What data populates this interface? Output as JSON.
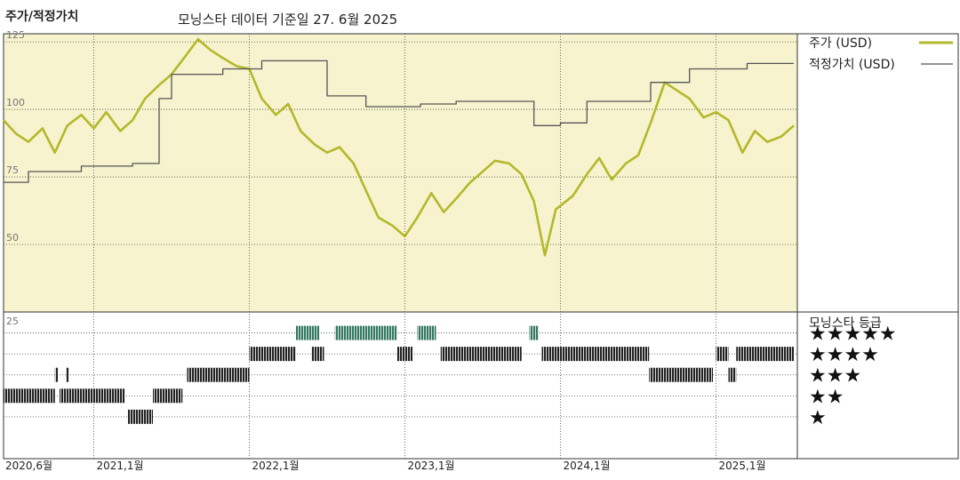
{
  "title": "주가/적정가치",
  "subtitle": "모닝스타 데이터 기준일 27. 6월 2025",
  "chart_data": {
    "type": "line",
    "x_range": [
      "2020-06",
      "2025-07"
    ],
    "x_ticks": [
      {
        "label": "2020,6월",
        "t": 2020.42
      },
      {
        "label": "2021,1월",
        "t": 2021.0
      },
      {
        "label": "2022,1월",
        "t": 2022.0
      },
      {
        "label": "2023,1월",
        "t": 2023.0
      },
      {
        "label": "2024,1월",
        "t": 2024.0
      },
      {
        "label": "2025,1월",
        "t": 2025.0
      }
    ],
    "y_ticks": [
      125,
      100,
      75,
      50
    ],
    "ylim": [
      25,
      128
    ],
    "grid": true,
    "legend_position": "right",
    "series": [
      {
        "name": "주가 (USD)",
        "color": "#b4b82a",
        "points": [
          [
            2020.42,
            96
          ],
          [
            2020.5,
            91
          ],
          [
            2020.58,
            88
          ],
          [
            2020.67,
            93
          ],
          [
            2020.75,
            84
          ],
          [
            2020.83,
            94
          ],
          [
            2020.92,
            98
          ],
          [
            2021.0,
            93
          ],
          [
            2021.08,
            99
          ],
          [
            2021.17,
            92
          ],
          [
            2021.25,
            96
          ],
          [
            2021.33,
            104
          ],
          [
            2021.42,
            109
          ],
          [
            2021.5,
            113
          ],
          [
            2021.58,
            119
          ],
          [
            2021.67,
            126
          ],
          [
            2021.75,
            122
          ],
          [
            2021.83,
            119
          ],
          [
            2021.92,
            116
          ],
          [
            2022.0,
            115
          ],
          [
            2022.08,
            104
          ],
          [
            2022.17,
            98
          ],
          [
            2022.25,
            102
          ],
          [
            2022.33,
            92
          ],
          [
            2022.42,
            87
          ],
          [
            2022.5,
            84
          ],
          [
            2022.58,
            86
          ],
          [
            2022.67,
            80
          ],
          [
            2022.75,
            70
          ],
          [
            2022.83,
            60
          ],
          [
            2022.92,
            57
          ],
          [
            2023.0,
            53
          ],
          [
            2023.08,
            60
          ],
          [
            2023.17,
            69
          ],
          [
            2023.25,
            62
          ],
          [
            2023.33,
            67
          ],
          [
            2023.42,
            73
          ],
          [
            2023.5,
            77
          ],
          [
            2023.58,
            81
          ],
          [
            2023.67,
            80
          ],
          [
            2023.75,
            76
          ],
          [
            2023.83,
            66
          ],
          [
            2023.9,
            46
          ],
          [
            2023.97,
            63
          ],
          [
            2024.08,
            68
          ],
          [
            2024.17,
            76
          ],
          [
            2024.25,
            82
          ],
          [
            2024.33,
            74
          ],
          [
            2024.42,
            80
          ],
          [
            2024.5,
            83
          ],
          [
            2024.58,
            95
          ],
          [
            2024.67,
            110
          ],
          [
            2024.75,
            107
          ],
          [
            2024.83,
            104
          ],
          [
            2024.92,
            97
          ],
          [
            2025.0,
            99
          ],
          [
            2025.08,
            96
          ],
          [
            2025.17,
            84
          ],
          [
            2025.25,
            92
          ],
          [
            2025.33,
            88
          ],
          [
            2025.42,
            90
          ],
          [
            2025.5,
            94
          ]
        ]
      },
      {
        "name": "적정가치 (USD)",
        "color": "#555555",
        "points": [
          [
            2020.42,
            73
          ],
          [
            2020.58,
            73
          ],
          [
            2020.58,
            77
          ],
          [
            2020.92,
            77
          ],
          [
            2020.92,
            79
          ],
          [
            2021.25,
            79
          ],
          [
            2021.25,
            80
          ],
          [
            2021.42,
            80
          ],
          [
            2021.42,
            104
          ],
          [
            2021.5,
            104
          ],
          [
            2021.5,
            113
          ],
          [
            2021.83,
            113
          ],
          [
            2021.83,
            115
          ],
          [
            2022.08,
            115
          ],
          [
            2022.08,
            118
          ],
          [
            2022.5,
            118
          ],
          [
            2022.5,
            105
          ],
          [
            2022.75,
            105
          ],
          [
            2022.75,
            101
          ],
          [
            2023.1,
            101
          ],
          [
            2023.1,
            102
          ],
          [
            2023.33,
            102
          ],
          [
            2023.33,
            103
          ],
          [
            2023.83,
            103
          ],
          [
            2023.83,
            94
          ],
          [
            2024.0,
            94
          ],
          [
            2024.0,
            95
          ],
          [
            2024.17,
            95
          ],
          [
            2024.17,
            103
          ],
          [
            2024.58,
            103
          ],
          [
            2024.58,
            110
          ],
          [
            2024.83,
            110
          ],
          [
            2024.83,
            115
          ],
          [
            2025.2,
            115
          ],
          [
            2025.2,
            117
          ],
          [
            2025.5,
            117
          ]
        ]
      }
    ],
    "rating_panel": {
      "title": "모닝스타 등급",
      "y_tick": 25,
      "levels": [
        "★★★★★",
        "★★★★",
        "★★★",
        "★★",
        "★"
      ],
      "segments": [
        {
          "rating": 2,
          "start": 2020.42,
          "end": 2020.75
        },
        {
          "rating": 2,
          "start": 2020.78,
          "end": 2021.2
        },
        {
          "rating": 3,
          "start": 2020.75,
          "end": 2020.77
        },
        {
          "rating": 3,
          "start": 2020.82,
          "end": 2020.84
        },
        {
          "rating": 1,
          "start": 2021.22,
          "end": 2021.38
        },
        {
          "rating": 2,
          "start": 2021.38,
          "end": 2021.57
        },
        {
          "rating": 3,
          "start": 2021.6,
          "end": 2022.0
        },
        {
          "rating": 4,
          "start": 2022.0,
          "end": 2022.3
        },
        {
          "rating": 4,
          "start": 2022.4,
          "end": 2022.48
        },
        {
          "rating": 5,
          "start": 2022.3,
          "end": 2022.45
        },
        {
          "rating": 5,
          "start": 2022.55,
          "end": 2022.95
        },
        {
          "rating": 5,
          "start": 2023.08,
          "end": 2023.2
        },
        {
          "rating": 4,
          "start": 2022.95,
          "end": 2023.05
        },
        {
          "rating": 4,
          "start": 2023.23,
          "end": 2023.75
        },
        {
          "rating": 5,
          "start": 2023.8,
          "end": 2023.86
        },
        {
          "rating": 4,
          "start": 2023.88,
          "end": 2024.57
        },
        {
          "rating": 3,
          "start": 2024.57,
          "end": 2024.98
        },
        {
          "rating": 4,
          "start": 2025.0,
          "end": 2025.08
        },
        {
          "rating": 3,
          "start": 2025.08,
          "end": 2025.13
        },
        {
          "rating": 4,
          "start": 2025.13,
          "end": 2025.5
        }
      ]
    }
  }
}
